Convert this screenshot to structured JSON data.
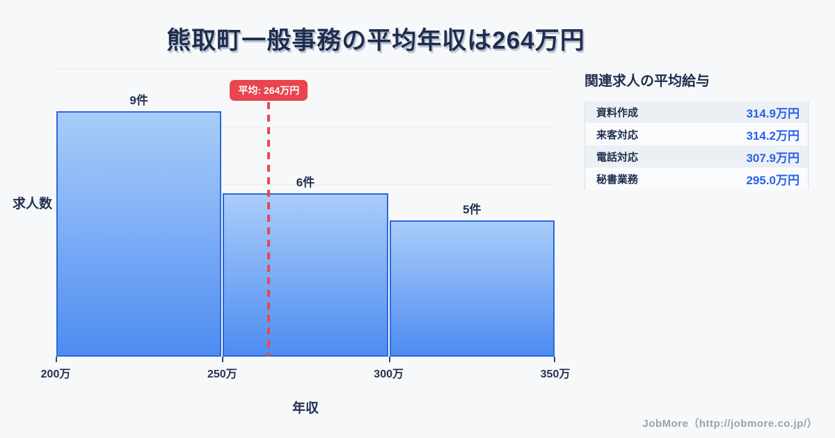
{
  "page": {
    "title": "熊取町一般事務の平均年収は264万円",
    "footer": "JobMore（http://jobmore.co.jp/）"
  },
  "chart_data": {
    "type": "bar",
    "subtype": "histogram",
    "title": "熊取町一般事務の平均年収は264万円",
    "xlabel": "年収",
    "ylabel": "求人数",
    "x_range": [
      200,
      350
    ],
    "bin_edges": [
      200,
      250,
      300,
      350
    ],
    "x_tick_labels": [
      "200万",
      "250万",
      "300万",
      "350万"
    ],
    "values": [
      9,
      6,
      5
    ],
    "bar_labels": [
      "9件",
      "6件",
      "5件"
    ],
    "mean": 264,
    "mean_label": "平均: 264万円",
    "y_max": 10.56,
    "grid_divisions": 5,
    "grid_on": true,
    "colors": {
      "background": "#f7f8fa",
      "bar_border": "#2a67dd",
      "bar_gradient_top": "#a9cdf9",
      "bar_gradient_bottom": "#4e8cf1",
      "mean_red": "#e8454e",
      "value_blue": "#2760e8",
      "text_dark": "#1f2e4e"
    }
  },
  "related": {
    "heading": "関連求人の平均給与",
    "rows": [
      {
        "label": "資料作成",
        "value": "314.9万円"
      },
      {
        "label": "来客対応",
        "value": "314.2万円"
      },
      {
        "label": "電話対応",
        "value": "307.9万円"
      },
      {
        "label": "秘書業務",
        "value": "295.0万円"
      }
    ]
  }
}
